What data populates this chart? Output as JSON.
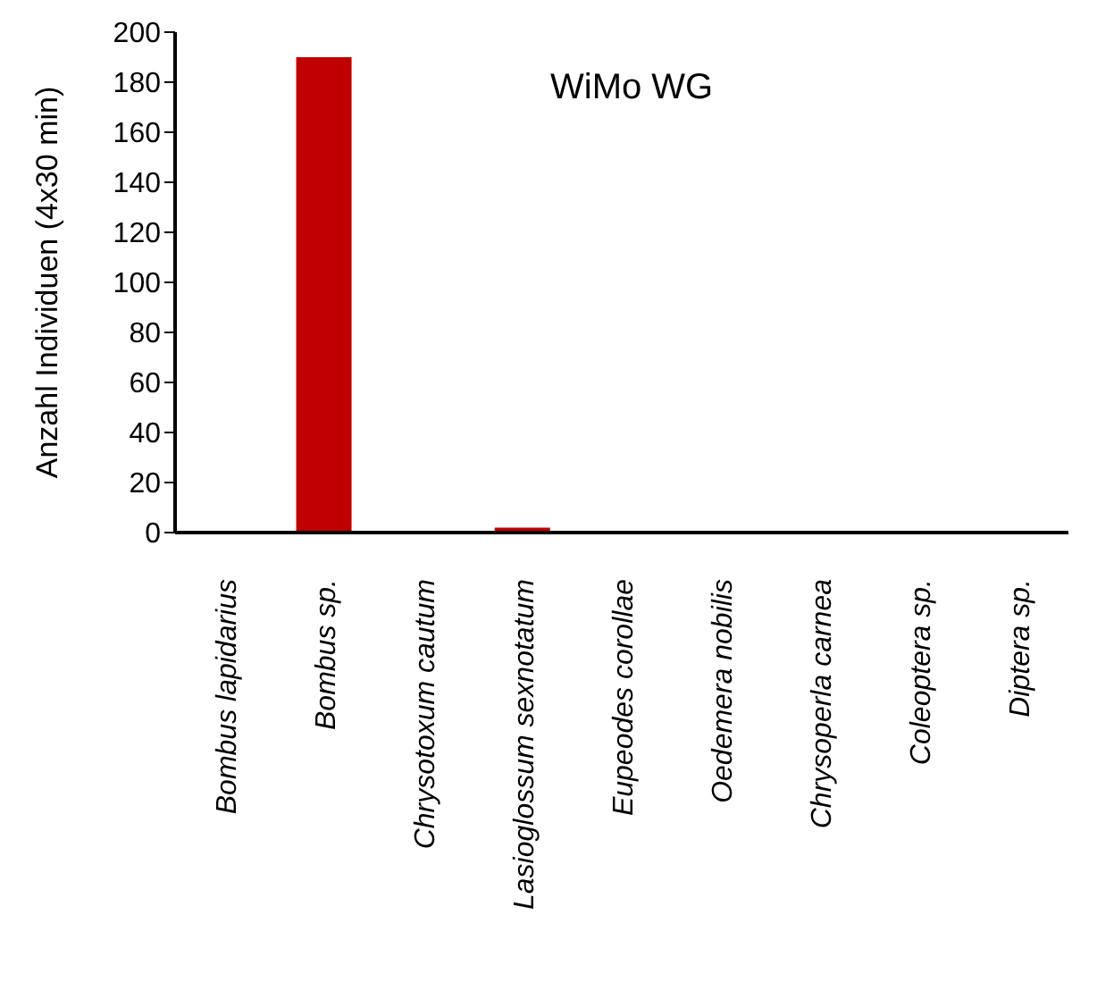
{
  "chart_data": {
    "type": "bar",
    "ylabel": "Anzahl Individuen (4x30 min)",
    "annotations": [
      "WiMo WG"
    ],
    "categories": [
      "Bombus lapidarius",
      "Bombus sp.",
      "Chrysotoxum cautum",
      "Lasioglossum sexnotatum",
      "Eupeodes corollae",
      "Oedemera nobilis",
      "Chrysoperla carnea",
      "Coleoptera sp.",
      "Diptera sp."
    ],
    "values": [
      0,
      190,
      0,
      2,
      0,
      0,
      0,
      0,
      0
    ],
    "color": "#c00000",
    "ylim": [
      0,
      200
    ],
    "yticks": [
      0,
      20,
      40,
      60,
      80,
      100,
      120,
      140,
      160,
      180,
      200
    ],
    "grid": false,
    "legend": false
  }
}
